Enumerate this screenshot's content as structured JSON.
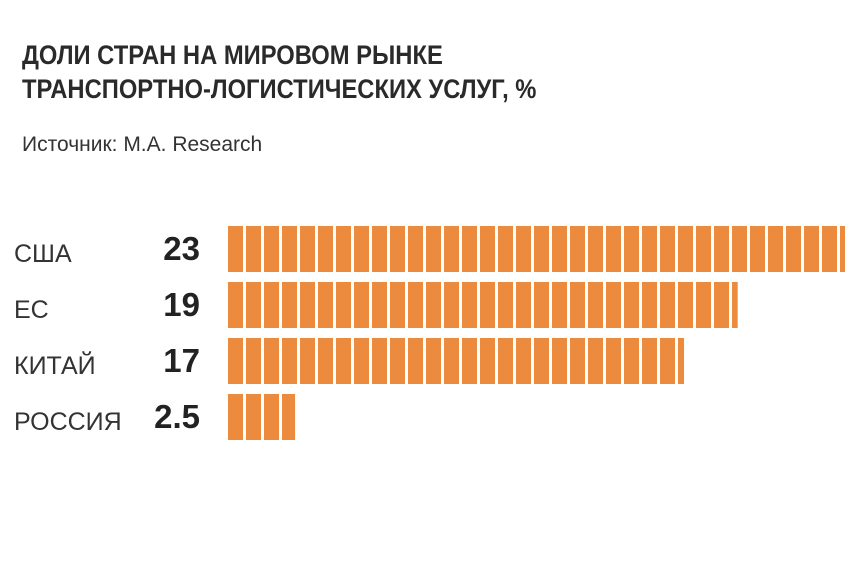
{
  "chart_data": {
    "type": "bar",
    "orientation": "horizontal",
    "title_lines": [
      "ДОЛИ СТРАН НА МИРОВОМ РЫНКЕ",
      "ТРАНСПОРТНО-ЛОГИСТИЧЕСКИХ УСЛУГ, %"
    ],
    "source": "Источник: M.A. Research",
    "categories": [
      "США",
      "ЕС",
      "КИТАЙ",
      "РОССИЯ"
    ],
    "values": [
      23,
      19,
      17,
      2.5
    ],
    "value_labels": [
      "23",
      "19",
      "17",
      "2.5"
    ],
    "xlim": [
      0,
      23
    ],
    "bar_style": "segmented",
    "grid": false,
    "colors": {
      "bar": "#ec8b3e",
      "text": "#2a2a2a"
    }
  }
}
